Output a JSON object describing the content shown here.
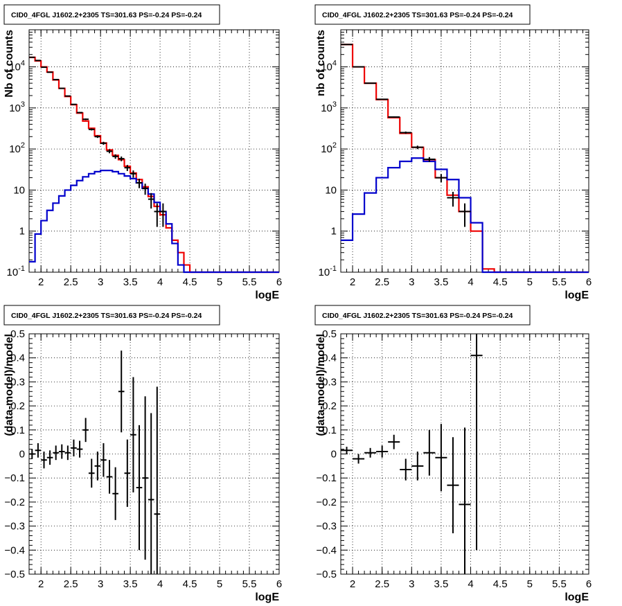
{
  "chart_data": [
    {
      "type": "line",
      "title": "CID0_4FGL J1602.2+2305 TS=301.63 PS=-0.24 PS=-0.24",
      "xlabel": "logE",
      "ylabel": "Nb of counts",
      "xlim": [
        1.8,
        6.0
      ],
      "ylim": [
        0.1,
        80000
      ],
      "yscale": "log",
      "grid": true,
      "xticks": [
        "2",
        "2.5",
        "3",
        "3.5",
        "4",
        "4.5",
        "5",
        "5.5",
        "6"
      ],
      "ytick_labels": [
        "10^-1",
        "1",
        "10",
        "10^2",
        "10^3",
        "10^4"
      ],
      "bin_edges": [
        1.8,
        1.9,
        2.0,
        2.1,
        2.2,
        2.3,
        2.4,
        2.5,
        2.6,
        2.7,
        2.8,
        2.9,
        3.0,
        3.1,
        3.2,
        3.3,
        3.4,
        3.5,
        3.6,
        3.7,
        3.8,
        3.9,
        4.0,
        4.1,
        4.2,
        4.3,
        4.4,
        4.5,
        4.6,
        4.7,
        4.8,
        4.9,
        5.0,
        5.1,
        5.2,
        5.3,
        5.4,
        5.5,
        5.6,
        5.7,
        5.8,
        5.9,
        6.0
      ],
      "series": [
        {
          "color": "#ee0000",
          "values": [
            17000,
            14000,
            10000,
            7500,
            4800,
            3000,
            1900,
            1200,
            750,
            480,
            320,
            210,
            140,
            95,
            70,
            55,
            38,
            26,
            18,
            12,
            7,
            4,
            2.5,
            1.2,
            0.6,
            0.3,
            0.15,
            0.1,
            0.1,
            0.1,
            0.1,
            0.1,
            0.1,
            0.1,
            0.1,
            0.1,
            0.1,
            0.1,
            0.1,
            0.1,
            0.1,
            0.1
          ]
        },
        {
          "color": "#0000cc",
          "values": [
            0.18,
            0.85,
            1.8,
            3.2,
            4.8,
            7.2,
            10,
            13,
            17,
            21,
            25,
            28,
            30,
            30,
            28,
            25,
            22,
            19,
            15,
            11,
            8,
            5,
            3,
            1.5,
            0.5,
            0.15,
            0.1,
            0.1,
            0.1,
            0.1,
            0.1,
            0.1,
            0.1,
            0.1,
            0.1,
            0.1,
            0.1,
            0.1,
            0.1,
            0.1,
            0.1,
            0.1
          ]
        },
        {
          "color": "#000000",
          "points": [
            [
              1.85,
              17100
            ],
            [
              1.95,
              14300
            ],
            [
              2.05,
              9800
            ],
            [
              2.15,
              7400
            ],
            [
              2.25,
              4900
            ],
            [
              2.35,
              3000
            ],
            [
              2.45,
              1950
            ],
            [
              2.55,
              1220
            ],
            [
              2.65,
              770
            ],
            [
              2.75,
              530
            ],
            [
              2.85,
              300
            ],
            [
              2.95,
              200
            ],
            [
              3.05,
              138
            ],
            [
              3.15,
              88
            ],
            [
              3.25,
              66
            ],
            [
              3.35,
              58
            ],
            [
              3.45,
              35
            ],
            [
              3.55,
              25
            ],
            [
              3.65,
              15
            ],
            [
              3.75,
              11
            ],
            [
              3.85,
              6
            ],
            [
              3.95,
              3
            ],
            [
              4.05,
              3
            ]
          ]
        }
      ]
    },
    {
      "type": "line",
      "title": "CID0_4FGL J1602.2+2305 TS=301.63 PS=-0.24 PS=-0.24",
      "xlabel": "logE",
      "ylabel": "nb of counts",
      "xlim": [
        1.8,
        6.0
      ],
      "ylim": [
        0.1,
        80000
      ],
      "yscale": "log",
      "grid": true,
      "xticks": [
        "2",
        "2.5",
        "3",
        "3.5",
        "4",
        "4.5",
        "5",
        "5.5",
        "6"
      ],
      "ytick_labels": [
        "10^-1",
        "1",
        "10",
        "10^2",
        "10^3",
        "10^4"
      ],
      "bin_edges": [
        1.8,
        2.0,
        2.2,
        2.4,
        2.6,
        2.8,
        3.0,
        3.2,
        3.4,
        3.6,
        3.8,
        4.0,
        4.2,
        4.4,
        4.6,
        4.8,
        5.0,
        5.2,
        5.4,
        5.6,
        5.8,
        6.0
      ],
      "series": [
        {
          "color": "#ee0000",
          "values": [
            35000,
            10000,
            4000,
            1600,
            580,
            240,
            110,
            55,
            20,
            7.5,
            3,
            1,
            0.12,
            0.1,
            0.1,
            0.1,
            0.1,
            0.1,
            0.1,
            0.1,
            0.1
          ]
        },
        {
          "color": "#0000cc",
          "values": [
            0.6,
            2.6,
            8.5,
            20,
            35,
            50,
            60,
            50,
            32,
            18,
            6.5,
            1.6,
            0.1,
            0.1,
            0.1,
            0.1,
            0.1,
            0.1,
            0.1,
            0.1,
            0.1
          ]
        },
        {
          "color": "#000000",
          "points": [
            [
              1.9,
              35000
            ],
            [
              2.1,
              10000
            ],
            [
              2.3,
              4000
            ],
            [
              2.5,
              1620
            ],
            [
              2.7,
              600
            ],
            [
              2.9,
              250
            ],
            [
              3.1,
              110
            ],
            [
              3.3,
              56
            ],
            [
              3.5,
              20
            ],
            [
              3.7,
              6.5
            ],
            [
              3.9,
              3
            ]
          ]
        }
      ]
    },
    {
      "type": "scatter",
      "title": "CID0_4FGL J1602.2+2305 TS=301.63 PS=-0.24 PS=-0.24",
      "xlabel": "logE",
      "ylabel": "(data-model)/model",
      "xlim": [
        1.8,
        6.0
      ],
      "ylim": [
        -0.5,
        0.5
      ],
      "grid": true,
      "xticks": [
        "2",
        "2.5",
        "3",
        "3.5",
        "4",
        "4.5",
        "5",
        "5.5",
        "6"
      ],
      "yticks": [
        "−0.5",
        "−0.4",
        "−0.3",
        "−0.2",
        "−0.1",
        "0",
        "0.1",
        "0.2",
        "0.3",
        "0.4",
        "0.5"
      ],
      "xerr": 0.05,
      "points": [
        {
          "x": 1.85,
          "y": 0.0,
          "err": 0.02
        },
        {
          "x": 1.95,
          "y": 0.015,
          "err": 0.03
        },
        {
          "x": 2.05,
          "y": -0.025,
          "err": 0.035
        },
        {
          "x": 2.15,
          "y": -0.015,
          "err": 0.03
        },
        {
          "x": 2.25,
          "y": 0.005,
          "err": 0.03
        },
        {
          "x": 2.35,
          "y": 0.01,
          "err": 0.03
        },
        {
          "x": 2.45,
          "y": 0.005,
          "err": 0.03
        },
        {
          "x": 2.55,
          "y": 0.025,
          "err": 0.035
        },
        {
          "x": 2.65,
          "y": 0.02,
          "err": 0.035
        },
        {
          "x": 2.75,
          "y": 0.1,
          "err": 0.05
        },
        {
          "x": 2.85,
          "y": -0.08,
          "err": 0.06
        },
        {
          "x": 2.95,
          "y": -0.05,
          "err": 0.06
        },
        {
          "x": 3.05,
          "y": -0.025,
          "err": 0.07
        },
        {
          "x": 3.15,
          "y": -0.095,
          "err": 0.07
        },
        {
          "x": 3.25,
          "y": -0.165,
          "err": 0.11
        },
        {
          "x": 3.35,
          "y": 0.26,
          "err": 0.17
        },
        {
          "x": 3.45,
          "y": -0.08,
          "err": 0.14
        },
        {
          "x": 3.55,
          "y": 0.08,
          "err": 0.24
        },
        {
          "x": 3.65,
          "y": -0.14,
          "err": 0.26
        },
        {
          "x": 3.75,
          "y": -0.1,
          "err": 0.34
        },
        {
          "x": 3.85,
          "y": -0.19,
          "err": 0.36
        },
        {
          "x": 3.95,
          "y": -0.25,
          "err": 0.53
        }
      ]
    },
    {
      "type": "scatter",
      "title": "CID0_4FGL J1602.2+2305 TS=301.63 PS=-0.24 PS=-0.24",
      "xlabel": "logE",
      "ylabel": "(data-model)/model",
      "xlim": [
        1.8,
        6.0
      ],
      "ylim": [
        -0.5,
        0.5
      ],
      "grid": true,
      "xticks": [
        "2",
        "2.5",
        "3",
        "3.5",
        "4",
        "4.5",
        "5",
        "5.5",
        "6"
      ],
      "yticks": [
        "−0.5",
        "−0.4",
        "−0.3",
        "−0.2",
        "−0.1",
        "0",
        "0.1",
        "0.2",
        "0.3",
        "0.4",
        "0.5"
      ],
      "xerr": 0.1,
      "points": [
        {
          "x": 1.9,
          "y": 0.015,
          "err": 0.015
        },
        {
          "x": 2.1,
          "y": -0.02,
          "err": 0.02
        },
        {
          "x": 2.3,
          "y": 0.005,
          "err": 0.02
        },
        {
          "x": 2.5,
          "y": 0.01,
          "err": 0.025
        },
        {
          "x": 2.7,
          "y": 0.05,
          "err": 0.03
        },
        {
          "x": 2.9,
          "y": -0.065,
          "err": 0.045
        },
        {
          "x": 3.1,
          "y": -0.05,
          "err": 0.06
        },
        {
          "x": 3.3,
          "y": 0.005,
          "err": 0.095
        },
        {
          "x": 3.5,
          "y": -0.015,
          "err": 0.14
        },
        {
          "x": 3.7,
          "y": -0.13,
          "err": 0.2
        },
        {
          "x": 3.9,
          "y": -0.21,
          "err": 0.32
        },
        {
          "x": 4.1,
          "y": 0.41,
          "err": 0.81
        }
      ]
    }
  ]
}
